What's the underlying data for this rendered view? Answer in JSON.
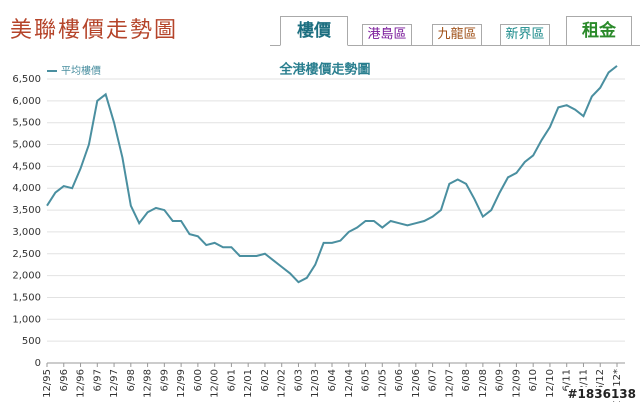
{
  "header": {
    "title": "美聯樓價走勢圖"
  },
  "tabs": [
    "樓價",
    "港島區",
    "九龍區",
    "新界區",
    "租金"
  ],
  "watermark": "#1836138",
  "chart_data": {
    "type": "line",
    "title": "全港樓價走勢圖",
    "categories": [
      "12/95",
      null,
      "6/96",
      null,
      "12/96",
      null,
      "6/97",
      null,
      "12/97",
      null,
      "6/98",
      null,
      "12/98",
      null,
      "6/99",
      null,
      "12/99",
      null,
      "6/00",
      null,
      "12/00",
      null,
      "6/01",
      null,
      "12/01",
      null,
      "6/02",
      null,
      "12/02",
      null,
      "6/03",
      null,
      "12/03",
      null,
      "6/04",
      null,
      "12/04",
      null,
      "6/05",
      null,
      "12/05",
      null,
      "6/06",
      null,
      "12/06",
      null,
      "6/07",
      null,
      "12/07",
      null,
      "6/08",
      null,
      "12/08",
      null,
      "6/09",
      null,
      "12/09",
      null,
      "6/10",
      null,
      "12/10",
      null,
      "6/11",
      null,
      "12/11",
      null,
      "6/12",
      null,
      "11/12*"
    ],
    "series": [
      {
        "name": "平均樓價",
        "color": "#4a8fa0",
        "values": [
          3600,
          3900,
          4050,
          4000,
          4450,
          5000,
          6000,
          6150,
          5500,
          4700,
          3600,
          3200,
          3450,
          3550,
          3500,
          3250,
          3250,
          2950,
          2900,
          2700,
          2750,
          2650,
          2650,
          2450,
          2450,
          2450,
          2500,
          2350,
          2200,
          2050,
          1850,
          1950,
          2250,
          2750,
          2750,
          2800,
          3000,
          3100,
          3250,
          3250,
          3100,
          3250,
          3200,
          3150,
          3200,
          3250,
          3350,
          3500,
          4100,
          4200,
          4100,
          3750,
          3350,
          3500,
          3900,
          4250,
          4350,
          4600,
          4750,
          5100,
          5400,
          5850,
          5900,
          5800,
          5650,
          6100,
          6300,
          6650,
          6800
        ]
      }
    ],
    "ylim": [
      0,
      6500
    ],
    "yticks": [
      0,
      {
        "value": 500,
        "label": "500"
      },
      {
        "value": 1000,
        "label": "1,000"
      },
      {
        "value": 1500,
        "label": "1,500"
      },
      {
        "value": 2000,
        "label": "2,000"
      },
      {
        "value": 2500,
        "label": "2,500"
      },
      {
        "value": 3000,
        "label": "3,000"
      },
      {
        "value": 3500,
        "label": "3,500"
      },
      {
        "value": 4000,
        "label": "4,000"
      },
      {
        "value": 4500,
        "label": "4,500"
      },
      {
        "value": 5000,
        "label": "5,000"
      },
      {
        "value": 5500,
        "label": "5,500"
      },
      {
        "value": 6000,
        "label": "6,000"
      },
      {
        "value": 6500,
        "label": "6,500"
      }
    ],
    "grid": true,
    "legend": "top-left"
  }
}
